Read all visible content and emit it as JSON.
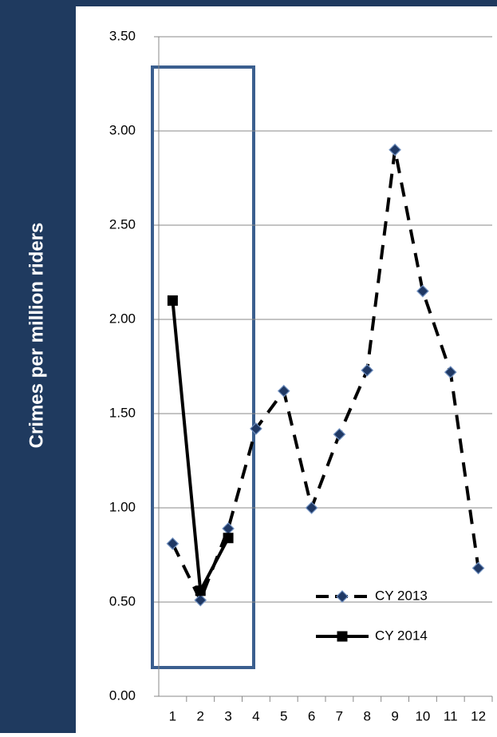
{
  "chart_data": {
    "type": "line",
    "y_label": "Crimes per million riders",
    "categories": [
      "1",
      "2",
      "3",
      "4",
      "5",
      "6",
      "7",
      "8",
      "9",
      "10",
      "11",
      "12"
    ],
    "series": [
      {
        "name": "CY 2013",
        "color": "#000000",
        "marker_color": "#1f3864",
        "dashed": true,
        "marker": "diamond",
        "values": [
          0.81,
          0.51,
          0.89,
          1.42,
          1.62,
          1.0,
          1.39,
          1.73,
          2.9,
          2.15,
          1.72,
          0.68
        ]
      },
      {
        "name": "CY 2014",
        "color": "#000000",
        "marker_color": "#000000",
        "dashed": false,
        "marker": "square",
        "values": [
          2.1,
          0.56,
          0.84,
          null,
          null,
          null,
          null,
          null,
          null,
          null,
          null,
          null
        ]
      }
    ],
    "ylim": [
      0,
      3.5
    ],
    "yticks": [
      {
        "value": 0,
        "label": "0.00"
      },
      {
        "value": 0.5,
        "label": "0.50"
      },
      {
        "value": 1,
        "label": "1.00"
      },
      {
        "value": 1.5,
        "label": "1.50"
      },
      {
        "value": 2,
        "label": "2.00"
      },
      {
        "value": 2.5,
        "label": "2.50"
      },
      {
        "value": 3,
        "label": "3.00"
      },
      {
        "value": 3.5,
        "label": "3.50"
      }
    ],
    "grid": true
  }
}
